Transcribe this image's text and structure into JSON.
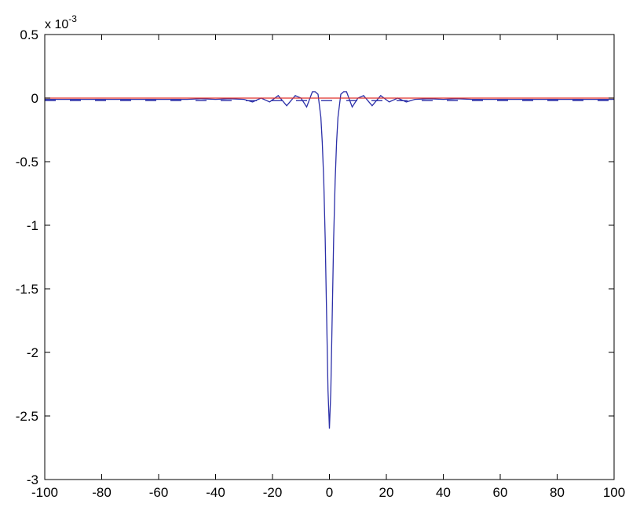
{
  "chart_data": {
    "type": "line",
    "title": "",
    "xlabel": "",
    "ylabel": "",
    "xlim": [
      -100,
      100
    ],
    "ylim": [
      -3,
      0.5
    ],
    "y_exponent": {
      "base": "x 10",
      "power": "-3"
    },
    "x_ticks": [
      -100,
      -80,
      -60,
      -40,
      -20,
      0,
      20,
      40,
      60,
      80,
      100
    ],
    "x_tick_labels": [
      "-100",
      "-80",
      "-60",
      "-40",
      "-20",
      "0",
      "20",
      "40",
      "60",
      "80",
      "100"
    ],
    "y_ticks": [
      -3,
      -2.5,
      -2,
      -1.5,
      -1,
      -0.5,
      0,
      0.5
    ],
    "y_tick_labels": [
      "-3",
      "-2.5",
      "-2",
      "-1.5",
      "-1",
      "-0.5",
      "0",
      "0.5"
    ],
    "grid": false,
    "legend": "none",
    "series": [
      {
        "style": "solid",
        "color": "#2b2fa8",
        "x": [
          -100,
          -90,
          -80,
          -70,
          -60,
          -50,
          -45,
          -40,
          -35,
          -30,
          -27,
          -24,
          -21,
          -18,
          -15,
          -12,
          -10,
          -8,
          -6,
          -5,
          -4,
          -3,
          -2.5,
          -2,
          -1.5,
          -1,
          -0.5,
          0,
          0.5,
          1,
          1.5,
          2,
          2.5,
          3,
          4,
          5,
          6,
          8,
          10,
          12,
          15,
          18,
          21,
          24,
          27,
          30,
          35,
          40,
          45,
          50,
          60,
          70,
          80,
          90,
          100
        ],
        "y": [
          -0.01,
          -0.01,
          -0.01,
          -0.01,
          -0.01,
          -0.01,
          -0.005,
          -0.01,
          -0.005,
          -0.01,
          -0.03,
          0.0,
          -0.03,
          0.02,
          -0.06,
          0.02,
          0.0,
          -0.07,
          0.05,
          0.05,
          0.03,
          -0.15,
          -0.35,
          -0.65,
          -1.1,
          -1.7,
          -2.3,
          -2.6,
          -2.3,
          -1.7,
          -1.1,
          -0.65,
          -0.35,
          -0.15,
          0.03,
          0.05,
          0.05,
          -0.07,
          0.0,
          0.02,
          -0.06,
          0.02,
          -0.03,
          0.0,
          -0.03,
          -0.01,
          -0.005,
          -0.01,
          -0.005,
          -0.01,
          -0.01,
          -0.01,
          -0.01,
          -0.01,
          -0.01
        ]
      },
      {
        "style": "dashed",
        "color": "#2b2fa8",
        "x": [
          -100,
          100
        ],
        "y": [
          -0.02,
          -0.02
        ]
      },
      {
        "style": "solid",
        "color": "#e0302a",
        "x": [
          -100,
          100
        ],
        "y": [
          0.0,
          0.0
        ]
      }
    ]
  }
}
